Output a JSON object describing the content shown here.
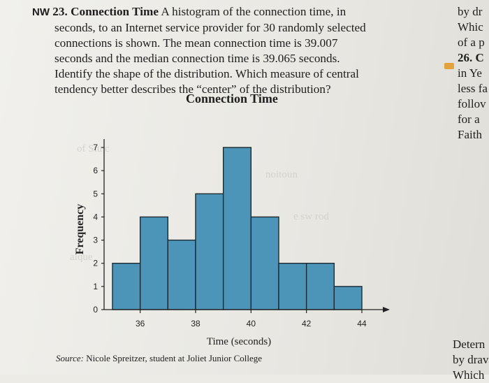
{
  "problem": {
    "label": "NW",
    "number": "23.",
    "title": "Connection Time",
    "lines": [
      "A histogram of the connection time, in",
      "seconds, to an Internet service provider for 30 randomly selected",
      "connections is shown. The mean connection time is 39.007",
      "seconds and the median connection time is 39.065 seconds.",
      "Identify the shape of the distribution. Which measure of central",
      "tendency better describes the “center” of the distribution?"
    ]
  },
  "right_column": {
    "top_lines": [
      "by dr",
      "Whic",
      "of a p"
    ],
    "item_number": "26. C",
    "item_lines": [
      "in Ye",
      "less fa",
      "follov",
      "for a",
      "Faith"
    ],
    "bottom_lines": [
      "Detern",
      "by drav",
      "Which"
    ]
  },
  "source": {
    "label": "Source:",
    "text": "Nicole Spreitzer, student at Joliet Junior College"
  },
  "chart_data": {
    "type": "bar",
    "title": "Connection Time",
    "xlabel": "Time (seconds)",
    "ylabel": "Frequency",
    "bin_width": 1,
    "bins": [
      {
        "start": 35,
        "end": 36,
        "value": 2
      },
      {
        "start": 36,
        "end": 37,
        "value": 4
      },
      {
        "start": 37,
        "end": 38,
        "value": 3
      },
      {
        "start": 38,
        "end": 39,
        "value": 5
      },
      {
        "start": 39,
        "end": 40,
        "value": 7
      },
      {
        "start": 40,
        "end": 41,
        "value": 4
      },
      {
        "start": 41,
        "end": 42,
        "value": 2
      },
      {
        "start": 42,
        "end": 43,
        "value": 2
      },
      {
        "start": 43,
        "end": 44,
        "value": 1
      }
    ],
    "xticks": [
      "36",
      "38",
      "40",
      "42",
      "44"
    ],
    "xtick_values": [
      36,
      38,
      40,
      42,
      44
    ],
    "yticks": [
      "0",
      "1",
      "2",
      "3",
      "4",
      "5",
      "6",
      "7"
    ],
    "xlim": [
      35,
      44
    ],
    "ylim": [
      0,
      7
    ],
    "bar_color": "#4c95b8",
    "edge_color": "#1c2a32",
    "grid": false
  }
}
